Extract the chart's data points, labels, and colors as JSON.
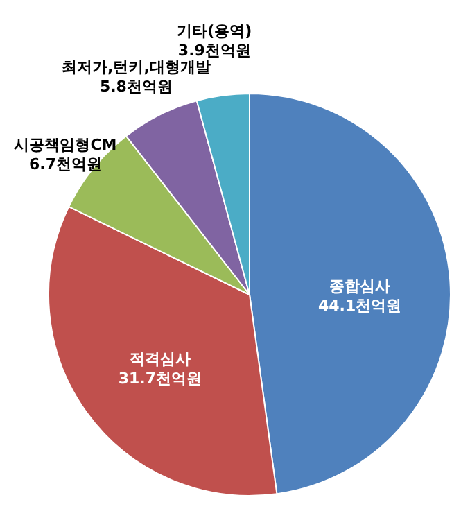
{
  "chart_data": {
    "type": "pie",
    "categories": [
      "종합심사",
      "적격심사",
      "시공책임형CM",
      "최저가,턴키,대형개발",
      "기타(용역)"
    ],
    "values": [
      44.1,
      31.7,
      6.7,
      5.8,
      3.9
    ],
    "value_labels": [
      "44.1천억원",
      "31.7천억원",
      "6.7천억원",
      "5.8천억원",
      "3.9천억원"
    ],
    "colors": [
      "#4f81bd",
      "#c0504d",
      "#9bbb59",
      "#8064a2",
      "#4bacc6"
    ]
  }
}
